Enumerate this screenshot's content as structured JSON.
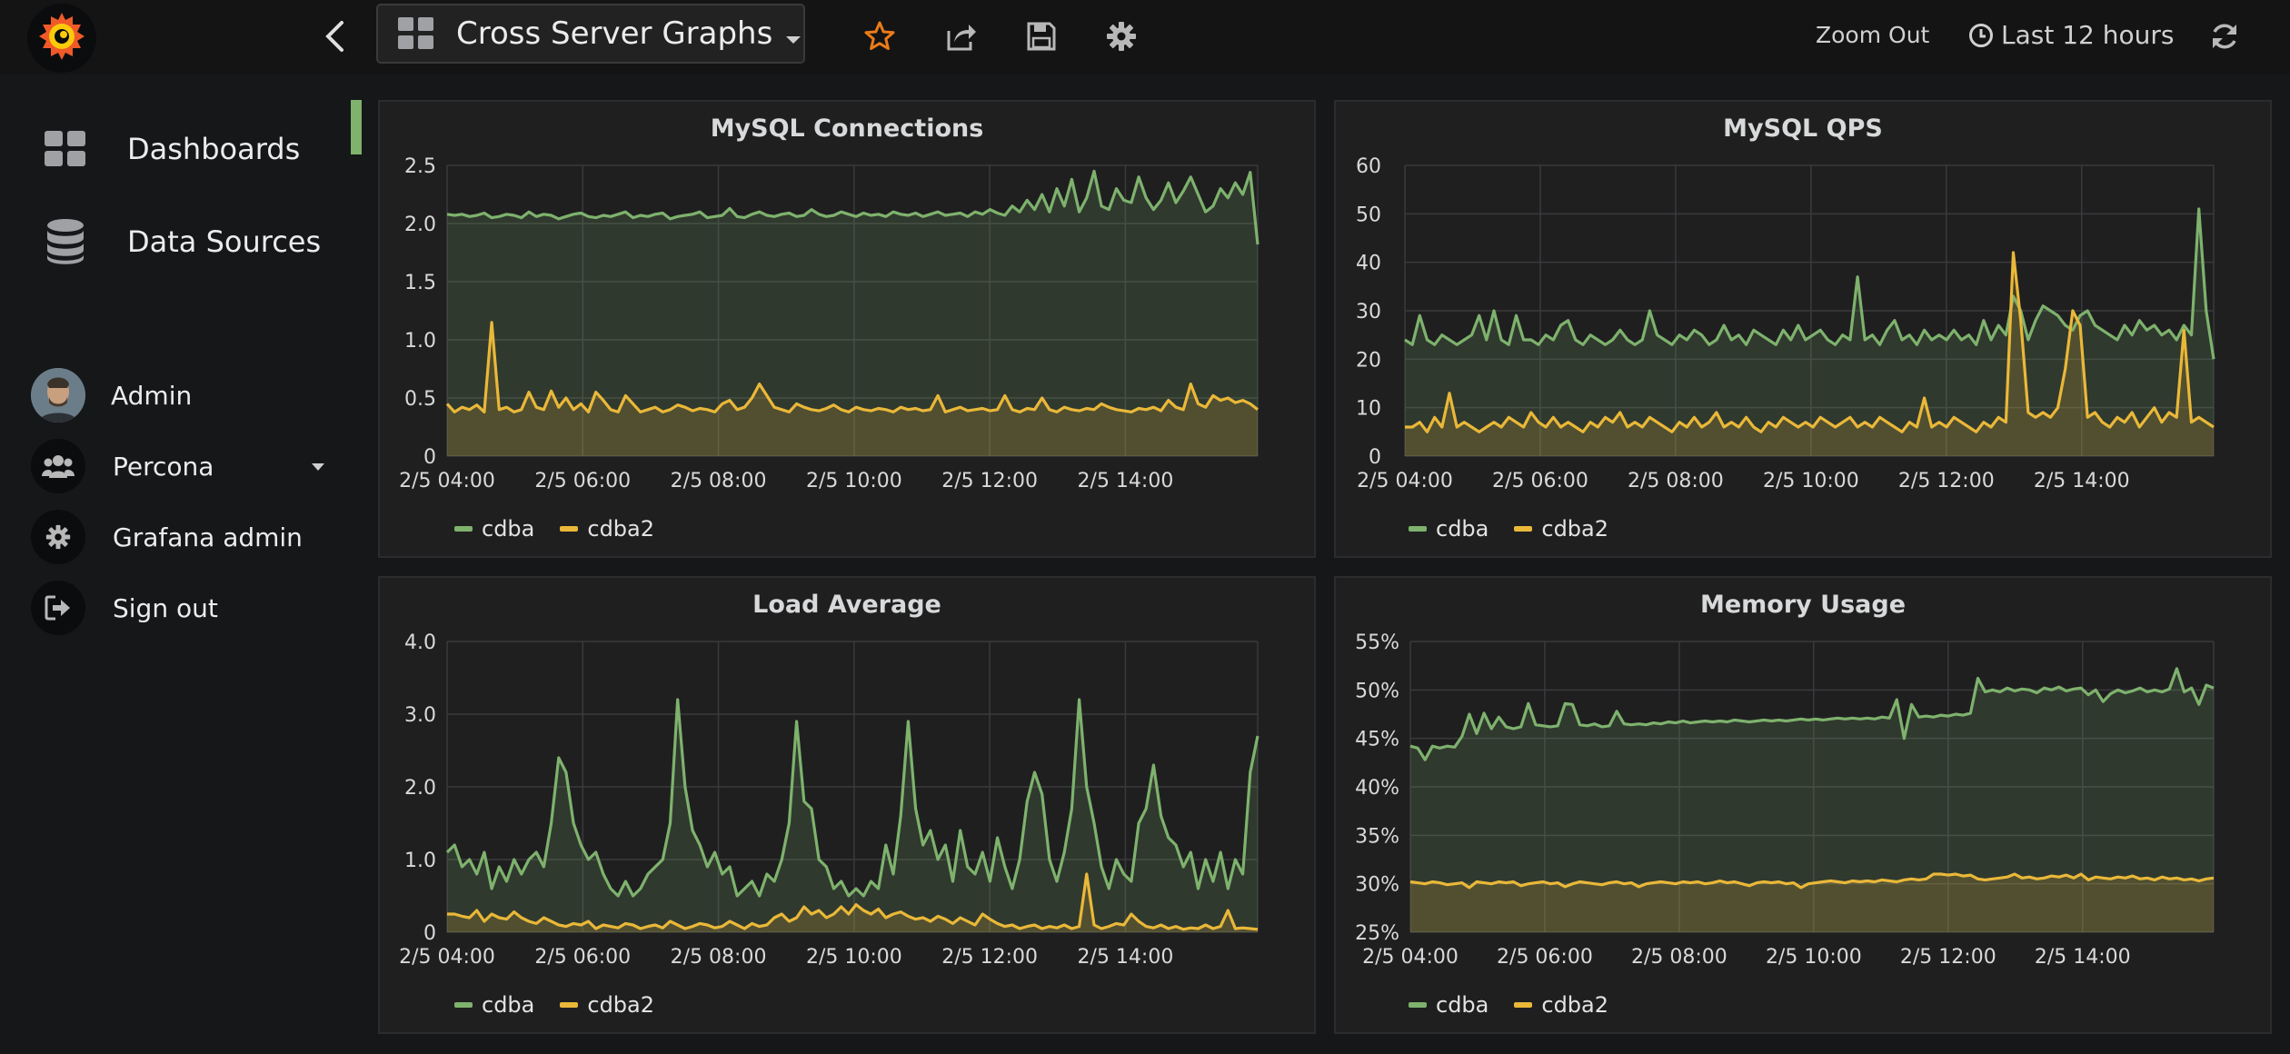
{
  "header": {
    "dashboard_title": "Cross Server Graphs",
    "zoom_out_label": "Zoom Out",
    "time_range_label": "Last 12 hours",
    "icons": [
      "grafana-logo-icon",
      "chevron-left-icon",
      "dashboard-grid-icon",
      "caret-down-icon",
      "star-icon",
      "share-icon",
      "save-icon",
      "gear-icon",
      "clock-icon",
      "refresh-icon"
    ]
  },
  "sidebar": {
    "nav": [
      {
        "label": "Dashboards",
        "icon": "dashboards-grid-icon"
      },
      {
        "label": "Data Sources",
        "icon": "database-icon"
      }
    ],
    "user": [
      {
        "label": "Admin",
        "icon": "avatar"
      },
      {
        "label": "Percona",
        "icon": "users-icon"
      },
      {
        "label": "Grafana admin",
        "icon": "cog-icon"
      },
      {
        "label": "Sign out",
        "icon": "sign-out-icon"
      }
    ]
  },
  "colors": {
    "cdba": "#7eb26d",
    "cdba2": "#eab839",
    "accent": "#7eb26d"
  },
  "chart_data": [
    {
      "type": "line",
      "title": "MySQL Connections",
      "x_ticks": [
        "2/5 04:00",
        "2/5 06:00",
        "2/5 08:00",
        "2/5 10:00",
        "2/5 12:00",
        "2/5 14:00"
      ],
      "y_ticks": [
        "0",
        "0.5",
        "1.0",
        "1.5",
        "2.0",
        "2.5"
      ],
      "ylim": [
        0,
        2.5
      ],
      "legend": [
        "cdba",
        "cdba2"
      ],
      "series": [
        {
          "name": "cdba",
          "values": [
            2.08,
            2.07,
            2.08,
            2.06,
            2.07,
            2.09,
            2.05,
            2.06,
            2.08,
            2.07,
            2.05,
            2.1,
            2.06,
            2.08,
            2.07,
            2.04,
            2.06,
            2.08,
            2.09,
            2.06,
            2.05,
            2.07,
            2.06,
            2.08,
            2.1,
            2.05,
            2.07,
            2.06,
            2.08,
            2.09,
            2.04,
            2.06,
            2.07,
            2.08,
            2.1,
            2.05,
            2.06,
            2.07,
            2.13,
            2.06,
            2.05,
            2.08,
            2.1,
            2.07,
            2.06,
            2.08,
            2.09,
            2.06,
            2.07,
            2.12,
            2.08,
            2.06,
            2.07,
            2.1,
            2.08,
            2.06,
            2.09,
            2.07,
            2.08,
            2.06,
            2.1,
            2.08,
            2.07,
            2.09,
            2.06,
            2.08,
            2.1,
            2.07,
            2.08,
            2.09,
            2.06,
            2.1,
            2.08,
            2.12,
            2.09,
            2.07,
            2.15,
            2.1,
            2.2,
            2.12,
            2.25,
            2.1,
            2.3,
            2.15,
            2.38,
            2.1,
            2.22,
            2.45,
            2.15,
            2.12,
            2.3,
            2.2,
            2.18,
            2.4,
            2.22,
            2.12,
            2.2,
            2.35,
            2.18,
            2.28,
            2.4,
            2.25,
            2.1,
            2.15,
            2.3,
            2.22,
            2.35,
            2.25,
            2.44,
            1.82
          ]
        },
        {
          "name": "cdba2",
          "values": [
            0.45,
            0.38,
            0.42,
            0.4,
            0.44,
            0.38,
            1.15,
            0.4,
            0.42,
            0.38,
            0.4,
            0.55,
            0.42,
            0.4,
            0.56,
            0.42,
            0.5,
            0.4,
            0.45,
            0.38,
            0.55,
            0.48,
            0.4,
            0.38,
            0.52,
            0.45,
            0.38,
            0.4,
            0.42,
            0.38,
            0.4,
            0.44,
            0.42,
            0.39,
            0.41,
            0.4,
            0.38,
            0.45,
            0.48,
            0.4,
            0.42,
            0.5,
            0.62,
            0.52,
            0.42,
            0.4,
            0.38,
            0.45,
            0.42,
            0.4,
            0.39,
            0.41,
            0.44,
            0.4,
            0.38,
            0.42,
            0.4,
            0.39,
            0.41,
            0.4,
            0.38,
            0.42,
            0.4,
            0.41,
            0.39,
            0.4,
            0.52,
            0.38,
            0.4,
            0.42,
            0.39,
            0.4,
            0.41,
            0.39,
            0.4,
            0.52,
            0.4,
            0.38,
            0.41,
            0.4,
            0.5,
            0.4,
            0.38,
            0.42,
            0.4,
            0.39,
            0.41,
            0.4,
            0.45,
            0.42,
            0.4,
            0.39,
            0.38,
            0.41,
            0.4,
            0.42,
            0.39,
            0.48,
            0.42,
            0.4,
            0.62,
            0.45,
            0.42,
            0.52,
            0.48,
            0.5,
            0.46,
            0.48,
            0.45,
            0.4
          ]
        }
      ]
    },
    {
      "type": "line",
      "title": "MySQL QPS",
      "x_ticks": [
        "2/5 04:00",
        "2/5 06:00",
        "2/5 08:00",
        "2/5 10:00",
        "2/5 12:00",
        "2/5 14:00"
      ],
      "y_ticks": [
        "0",
        "10",
        "20",
        "30",
        "40",
        "50",
        "60"
      ],
      "ylim": [
        0,
        60
      ],
      "legend": [
        "cdba",
        "cdba2"
      ],
      "series": [
        {
          "name": "cdba",
          "values": [
            24,
            23,
            29,
            24,
            23,
            25,
            24,
            23,
            24,
            25,
            29,
            24,
            30,
            24,
            23,
            29,
            24,
            24,
            23,
            25,
            24,
            27,
            28,
            24,
            23,
            25,
            24,
            23,
            24,
            26,
            24,
            23,
            24,
            30,
            25,
            24,
            23,
            25,
            24,
            26,
            25,
            23,
            24,
            27,
            24,
            25,
            23,
            26,
            25,
            24,
            23,
            26,
            24,
            27,
            24,
            25,
            26,
            24,
            23,
            25,
            24,
            37,
            24,
            25,
            23,
            26,
            28,
            24,
            25,
            23,
            26,
            24,
            25,
            24,
            26,
            24,
            25,
            23,
            28,
            24,
            27,
            25,
            33,
            30,
            24,
            28,
            31,
            30,
            29,
            27,
            26,
            29,
            30,
            27,
            26,
            25,
            24,
            27,
            25,
            28,
            26,
            27,
            25,
            26,
            24,
            27,
            25,
            51,
            30,
            20
          ]
        },
        {
          "name": "cdba2",
          "values": [
            6,
            6,
            7,
            5,
            8,
            6,
            13,
            6,
            7,
            6,
            5,
            6,
            7,
            6,
            8,
            7,
            6,
            9,
            7,
            6,
            8,
            6,
            7,
            6,
            5,
            7,
            6,
            8,
            7,
            9,
            6,
            7,
            6,
            8,
            7,
            6,
            5,
            7,
            6,
            8,
            6,
            7,
            9,
            6,
            7,
            6,
            8,
            6,
            5,
            7,
            6,
            8,
            7,
            6,
            7,
            6,
            8,
            7,
            6,
            7,
            8,
            6,
            7,
            6,
            8,
            7,
            6,
            5,
            7,
            6,
            12,
            6,
            7,
            6,
            8,
            7,
            6,
            5,
            7,
            6,
            8,
            7,
            42,
            28,
            9,
            8,
            9,
            8,
            10,
            18,
            30,
            27,
            8,
            9,
            7,
            6,
            8,
            7,
            9,
            6,
            8,
            10,
            7,
            9,
            8,
            26,
            7,
            8,
            7,
            6
          ]
        }
      ]
    },
    {
      "type": "line",
      "title": "Load Average",
      "x_ticks": [
        "2/5 04:00",
        "2/5 06:00",
        "2/5 08:00",
        "2/5 10:00",
        "2/5 12:00",
        "2/5 14:00"
      ],
      "y_ticks": [
        "0",
        "1.0",
        "2.0",
        "3.0",
        "4.0"
      ],
      "ylim": [
        0,
        4.0
      ],
      "legend": [
        "cdba",
        "cdba2"
      ],
      "series": [
        {
          "name": "cdba",
          "values": [
            1.1,
            1.2,
            0.9,
            1.0,
            0.8,
            1.1,
            0.6,
            0.9,
            0.7,
            1.0,
            0.8,
            1.0,
            1.1,
            0.9,
            1.5,
            2.4,
            2.2,
            1.5,
            1.2,
            1.0,
            1.1,
            0.8,
            0.6,
            0.5,
            0.7,
            0.5,
            0.6,
            0.8,
            0.9,
            1.0,
            1.5,
            3.2,
            2.0,
            1.4,
            1.2,
            0.9,
            1.1,
            0.8,
            0.9,
            0.5,
            0.6,
            0.7,
            0.5,
            0.8,
            0.7,
            1.0,
            1.5,
            2.9,
            1.8,
            1.7,
            1.0,
            0.9,
            0.6,
            0.7,
            0.5,
            0.6,
            0.5,
            0.7,
            0.6,
            1.2,
            0.8,
            1.6,
            2.9,
            1.7,
            1.2,
            1.4,
            1.0,
            1.2,
            0.7,
            1.4,
            0.9,
            0.8,
            1.1,
            0.7,
            1.3,
            0.9,
            0.6,
            1.0,
            1.8,
            2.2,
            1.9,
            1.0,
            0.7,
            1.1,
            1.7,
            3.2,
            2.0,
            1.5,
            0.9,
            0.6,
            1.0,
            0.8,
            0.7,
            1.5,
            1.7,
            2.3,
            1.6,
            1.3,
            1.2,
            0.9,
            1.1,
            0.6,
            1.0,
            0.7,
            1.1,
            0.6,
            1.0,
            0.8,
            2.2,
            2.7
          ]
        },
        {
          "name": "cdba2",
          "values": [
            0.25,
            0.25,
            0.22,
            0.2,
            0.3,
            0.15,
            0.25,
            0.2,
            0.18,
            0.28,
            0.2,
            0.15,
            0.12,
            0.2,
            0.15,
            0.1,
            0.08,
            0.12,
            0.1,
            0.15,
            0.05,
            0.1,
            0.08,
            0.06,
            0.12,
            0.1,
            0.05,
            0.08,
            0.1,
            0.06,
            0.15,
            0.1,
            0.05,
            0.08,
            0.12,
            0.1,
            0.06,
            0.08,
            0.15,
            0.1,
            0.05,
            0.12,
            0.08,
            0.1,
            0.2,
            0.25,
            0.15,
            0.2,
            0.35,
            0.25,
            0.3,
            0.2,
            0.25,
            0.35,
            0.25,
            0.38,
            0.3,
            0.25,
            0.32,
            0.2,
            0.25,
            0.28,
            0.22,
            0.18,
            0.2,
            0.15,
            0.22,
            0.18,
            0.12,
            0.2,
            0.15,
            0.1,
            0.25,
            0.18,
            0.12,
            0.08,
            0.1,
            0.05,
            0.08,
            0.1,
            0.05,
            0.08,
            0.06,
            0.1,
            0.05,
            0.08,
            0.8,
            0.1,
            0.05,
            0.08,
            0.12,
            0.1,
            0.25,
            0.15,
            0.08,
            0.06,
            0.1,
            0.05,
            0.08,
            0.04,
            0.06,
            0.05,
            0.1,
            0.05,
            0.08,
            0.3,
            0.05,
            0.06,
            0.05,
            0.04
          ]
        }
      ]
    },
    {
      "type": "line",
      "title": "Memory Usage",
      "x_ticks": [
        "2/5 04:00",
        "2/5 06:00",
        "2/5 08:00",
        "2/5 10:00",
        "2/5 12:00",
        "2/5 14:00"
      ],
      "y_ticks": [
        "25%",
        "30%",
        "35%",
        "40%",
        "45%",
        "50%",
        "55%"
      ],
      "ylim": [
        25,
        55
      ],
      "legend": [
        "cdba",
        "cdba2"
      ],
      "series": [
        {
          "name": "cdba",
          "values": [
            44.2,
            44.0,
            42.8,
            44.2,
            44.0,
            44.2,
            44.1,
            45.2,
            47.5,
            45.5,
            47.6,
            46.0,
            47.2,
            46.2,
            46.0,
            46.2,
            48.6,
            46.4,
            46.3,
            46.2,
            46.3,
            48.6,
            48.5,
            46.4,
            46.3,
            46.5,
            46.2,
            46.3,
            47.8,
            46.5,
            46.4,
            46.5,
            46.4,
            46.6,
            46.5,
            46.7,
            46.6,
            46.8,
            46.6,
            46.7,
            46.8,
            46.7,
            46.8,
            46.7,
            46.9,
            46.8,
            46.7,
            46.8,
            46.9,
            46.8,
            46.9,
            46.8,
            46.9,
            47.0,
            46.9,
            47.0,
            46.9,
            47.0,
            47.1,
            47.0,
            47.1,
            47.0,
            47.1,
            47.0,
            47.2,
            47.1,
            49.0,
            45.0,
            48.5,
            47.2,
            47.3,
            47.2,
            47.4,
            47.3,
            47.5,
            47.4,
            47.6,
            51.2,
            49.8,
            50.0,
            49.8,
            50.2,
            49.9,
            50.1,
            50.0,
            49.7,
            50.2,
            50.0,
            50.3,
            49.9,
            50.1,
            50.2,
            49.5,
            50.0,
            48.8,
            49.6,
            50.0,
            49.7,
            49.9,
            50.2,
            49.8,
            50.0,
            49.8,
            50.1,
            52.2,
            49.8,
            50.2,
            48.5,
            50.5,
            50.2
          ]
        },
        {
          "name": "cdba2",
          "values": [
            30.2,
            30.1,
            30.0,
            30.2,
            30.1,
            29.9,
            30.0,
            30.1,
            29.6,
            30.2,
            30.1,
            30.0,
            30.2,
            30.1,
            30.2,
            29.8,
            30.0,
            30.1,
            30.2,
            30.0,
            30.1,
            29.7,
            30.0,
            30.2,
            30.1,
            30.0,
            29.9,
            30.1,
            30.2,
            30.0,
            30.1,
            29.7,
            30.0,
            30.1,
            30.2,
            30.1,
            30.0,
            30.2,
            30.1,
            30.2,
            30.0,
            30.1,
            30.3,
            30.1,
            30.2,
            30.0,
            29.8,
            30.1,
            30.2,
            30.1,
            30.2,
            30.0,
            30.1,
            29.6,
            30.0,
            30.1,
            30.2,
            30.3,
            30.2,
            30.1,
            30.3,
            30.2,
            30.3,
            30.2,
            30.4,
            30.3,
            30.2,
            30.4,
            30.5,
            30.4,
            30.5,
            31.0,
            31.0,
            30.9,
            31.0,
            30.8,
            30.9,
            30.5,
            30.4,
            30.5,
            30.6,
            30.7,
            31.0,
            30.6,
            30.7,
            30.5,
            30.6,
            30.8,
            30.7,
            30.9,
            30.6,
            31.0,
            30.4,
            30.7,
            30.6,
            30.5,
            30.7,
            30.6,
            30.8,
            30.5,
            30.6,
            30.4,
            30.7,
            30.5,
            30.6,
            30.4,
            30.5,
            30.3,
            30.5,
            30.6
          ]
        }
      ]
    }
  ]
}
